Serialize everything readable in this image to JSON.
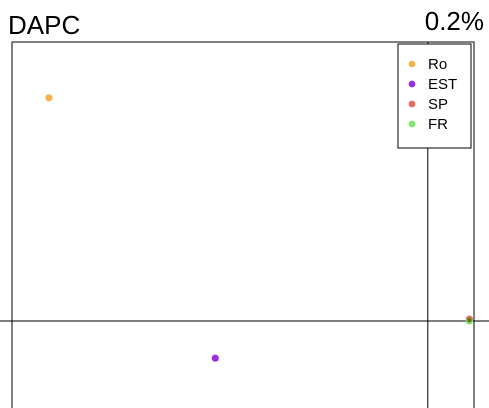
{
  "chart_data": {
    "type": "scatter",
    "title": "DAPC",
    "corner_label": "0.2%",
    "xlabel": "",
    "ylabel": "",
    "xlim": [
      0,
      1
    ],
    "ylim": [
      0,
      1
    ],
    "axis_lines": {
      "x": 0.25,
      "y": 0.9
    },
    "grid": false,
    "legend_placement": "top-right",
    "series": [
      {
        "name": "Ro",
        "color": "#f5b14f",
        "points": [
          {
            "x": 0.08,
            "y": 0.85
          }
        ]
      },
      {
        "name": "EST",
        "color": "#9b30e0",
        "points": [
          {
            "x": 0.44,
            "y": 0.15
          }
        ]
      },
      {
        "name": "SP",
        "color": "#e86a5a",
        "points": [
          {
            "x": 0.99,
            "y": 0.255
          }
        ]
      },
      {
        "name": "FR",
        "color": "#7be870",
        "points": [
          {
            "x": 0.99,
            "y": 0.25
          }
        ]
      }
    ],
    "overlap_color": "#7a6a1e"
  }
}
